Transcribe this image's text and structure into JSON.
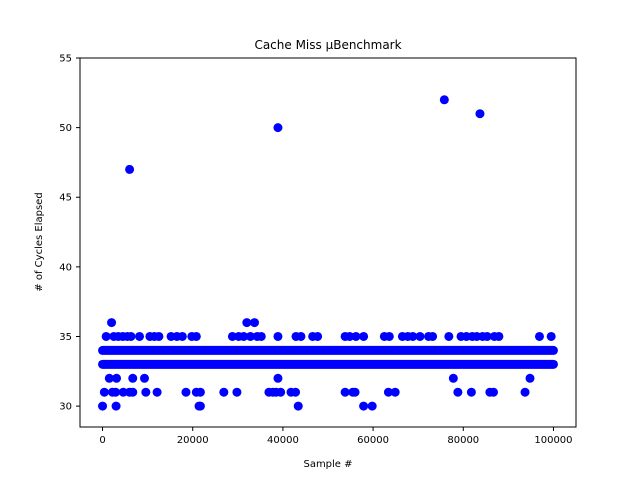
{
  "chart_data": {
    "type": "scatter",
    "title": "Cache Miss μBenchmark",
    "xlabel": "Sample #",
    "ylabel": "# of Cycles Elapsed",
    "xlim": [
      -5000,
      105000
    ],
    "ylim": [
      28.5,
      55
    ],
    "x_ticks": [
      0,
      20000,
      40000,
      60000,
      80000,
      100000
    ],
    "y_ticks": [
      30,
      35,
      40,
      45,
      50,
      55
    ],
    "grid": false,
    "marker_color": "#0000ff",
    "dense_bands": [
      {
        "y": 33,
        "x_start": 0,
        "x_end": 100000
      },
      {
        "y": 34,
        "x_start": 0,
        "x_end": 100000
      }
    ],
    "points": [
      {
        "x": 6000,
        "y": 47
      },
      {
        "x": 38900,
        "y": 50
      },
      {
        "x": 75800,
        "y": 52
      },
      {
        "x": 83700,
        "y": 51
      },
      {
        "x": 2000,
        "y": 36
      },
      {
        "x": 32000,
        "y": 36
      },
      {
        "x": 33700,
        "y": 36
      },
      {
        "x": 800,
        "y": 35
      },
      {
        "x": 2500,
        "y": 35
      },
      {
        "x": 3500,
        "y": 35
      },
      {
        "x": 4500,
        "y": 35
      },
      {
        "x": 5500,
        "y": 35
      },
      {
        "x": 6300,
        "y": 35
      },
      {
        "x": 8200,
        "y": 35
      },
      {
        "x": 10500,
        "y": 35
      },
      {
        "x": 11500,
        "y": 35
      },
      {
        "x": 12500,
        "y": 35
      },
      {
        "x": 15200,
        "y": 35
      },
      {
        "x": 16500,
        "y": 35
      },
      {
        "x": 17700,
        "y": 35
      },
      {
        "x": 19800,
        "y": 35
      },
      {
        "x": 20800,
        "y": 35
      },
      {
        "x": 28800,
        "y": 35
      },
      {
        "x": 30200,
        "y": 35
      },
      {
        "x": 31300,
        "y": 35
      },
      {
        "x": 32800,
        "y": 35
      },
      {
        "x": 34300,
        "y": 35
      },
      {
        "x": 35200,
        "y": 35
      },
      {
        "x": 38900,
        "y": 35
      },
      {
        "x": 42900,
        "y": 35
      },
      {
        "x": 44000,
        "y": 35
      },
      {
        "x": 46600,
        "y": 35
      },
      {
        "x": 47700,
        "y": 35
      },
      {
        "x": 53800,
        "y": 35
      },
      {
        "x": 54800,
        "y": 35
      },
      {
        "x": 56200,
        "y": 35
      },
      {
        "x": 57900,
        "y": 35
      },
      {
        "x": 62500,
        "y": 35
      },
      {
        "x": 63600,
        "y": 35
      },
      {
        "x": 66500,
        "y": 35
      },
      {
        "x": 67700,
        "y": 35
      },
      {
        "x": 68800,
        "y": 35
      },
      {
        "x": 70400,
        "y": 35
      },
      {
        "x": 72300,
        "y": 35
      },
      {
        "x": 73200,
        "y": 35
      },
      {
        "x": 76800,
        "y": 35
      },
      {
        "x": 79500,
        "y": 35
      },
      {
        "x": 80700,
        "y": 35
      },
      {
        "x": 82000,
        "y": 35
      },
      {
        "x": 83000,
        "y": 35
      },
      {
        "x": 84300,
        "y": 35
      },
      {
        "x": 85300,
        "y": 35
      },
      {
        "x": 86900,
        "y": 35
      },
      {
        "x": 87900,
        "y": 35
      },
      {
        "x": 96900,
        "y": 35
      },
      {
        "x": 99500,
        "y": 35
      },
      {
        "x": 1500,
        "y": 32
      },
      {
        "x": 3100,
        "y": 32
      },
      {
        "x": 6700,
        "y": 32
      },
      {
        "x": 9300,
        "y": 32
      },
      {
        "x": 38900,
        "y": 32
      },
      {
        "x": 77800,
        "y": 32
      },
      {
        "x": 94800,
        "y": 32
      },
      {
        "x": 400,
        "y": 31
      },
      {
        "x": 2200,
        "y": 31
      },
      {
        "x": 2900,
        "y": 31
      },
      {
        "x": 4600,
        "y": 31
      },
      {
        "x": 6000,
        "y": 31
      },
      {
        "x": 6700,
        "y": 31
      },
      {
        "x": 9600,
        "y": 31
      },
      {
        "x": 12100,
        "y": 31
      },
      {
        "x": 18500,
        "y": 31
      },
      {
        "x": 20800,
        "y": 31
      },
      {
        "x": 21700,
        "y": 31
      },
      {
        "x": 26900,
        "y": 31
      },
      {
        "x": 29800,
        "y": 31
      },
      {
        "x": 36900,
        "y": 31
      },
      {
        "x": 37800,
        "y": 31
      },
      {
        "x": 38500,
        "y": 31
      },
      {
        "x": 39500,
        "y": 31
      },
      {
        "x": 41800,
        "y": 31
      },
      {
        "x": 42800,
        "y": 31
      },
      {
        "x": 53800,
        "y": 31
      },
      {
        "x": 55500,
        "y": 31
      },
      {
        "x": 56000,
        "y": 31
      },
      {
        "x": 63400,
        "y": 31
      },
      {
        "x": 64900,
        "y": 31
      },
      {
        "x": 78800,
        "y": 31
      },
      {
        "x": 81800,
        "y": 31
      },
      {
        "x": 85900,
        "y": 31
      },
      {
        "x": 86700,
        "y": 31
      },
      {
        "x": 93700,
        "y": 31
      },
      {
        "x": 0,
        "y": 30
      },
      {
        "x": 3000,
        "y": 30
      },
      {
        "x": 21400,
        "y": 30
      },
      {
        "x": 21700,
        "y": 30
      },
      {
        "x": 43400,
        "y": 30
      },
      {
        "x": 57900,
        "y": 30
      },
      {
        "x": 59800,
        "y": 30
      }
    ]
  }
}
